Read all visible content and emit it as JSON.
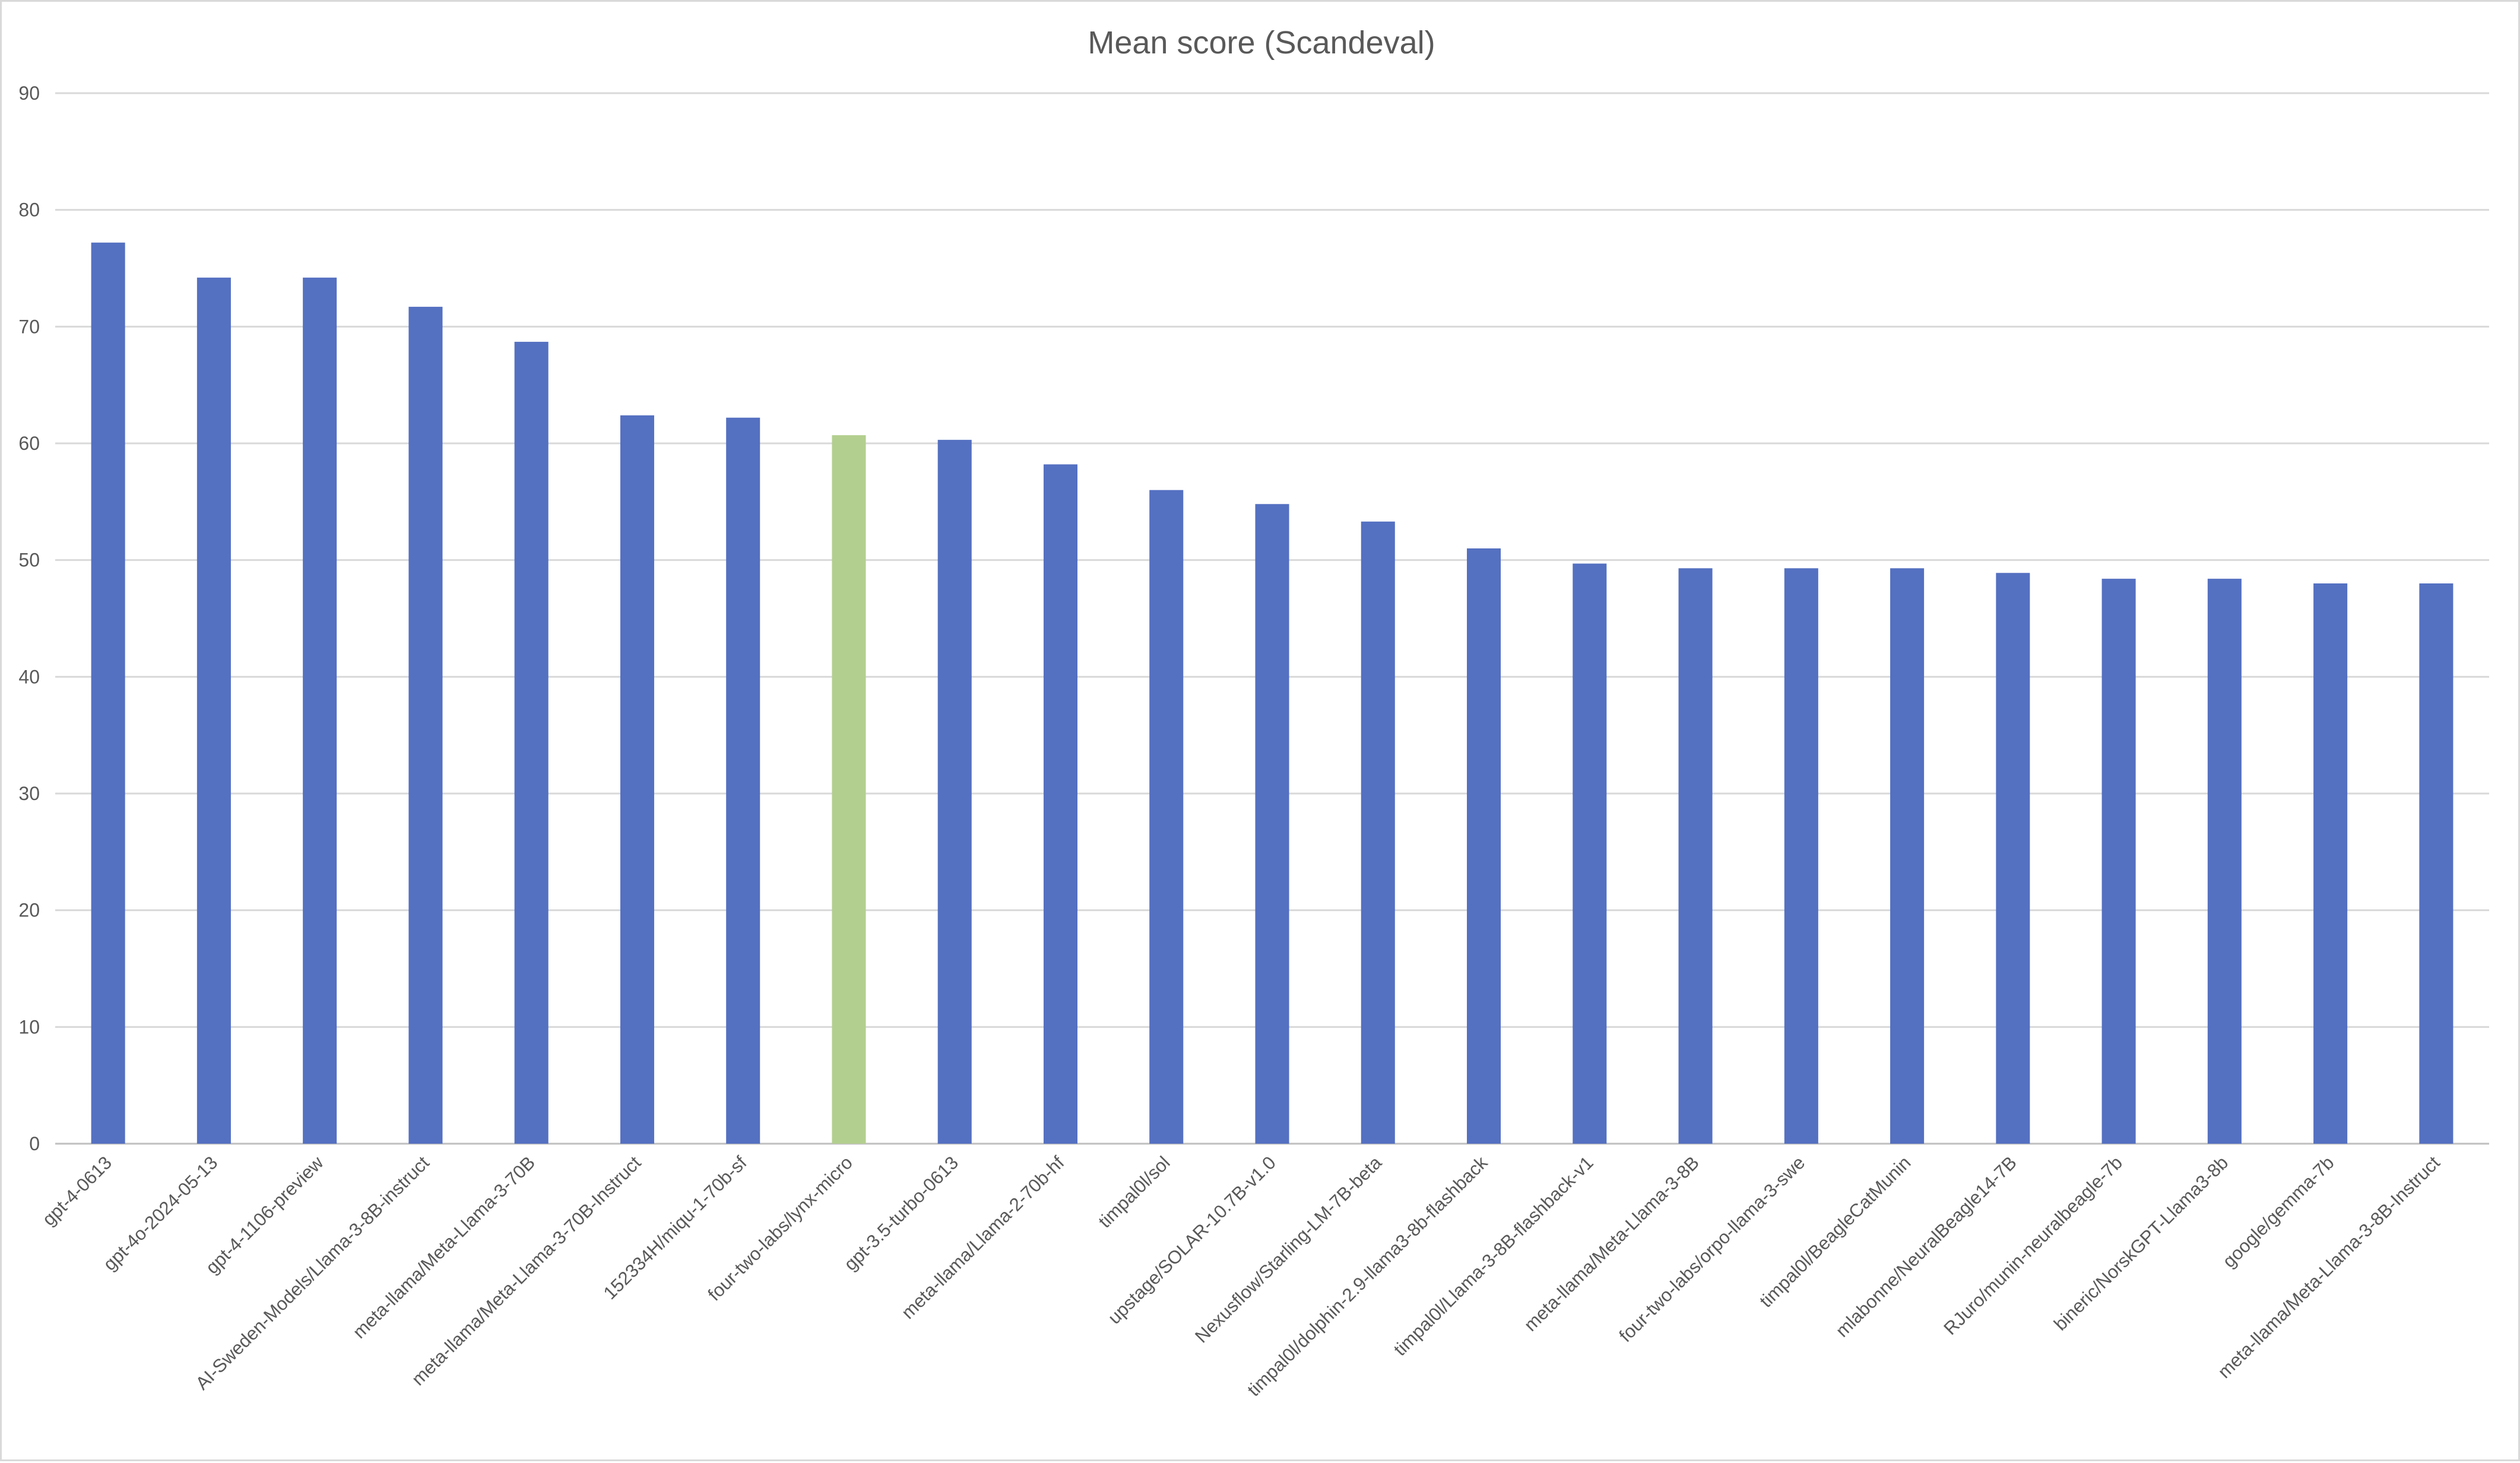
{
  "chart_data": {
    "type": "bar",
    "title": "Mean score (Scandeval)",
    "xlabel": "",
    "ylabel": "",
    "ylim": [
      0,
      90
    ],
    "yticks": [
      0,
      10,
      20,
      30,
      40,
      50,
      60,
      70,
      80,
      90
    ],
    "grid": true,
    "legend": "none",
    "colors": {
      "default": "#5470c1",
      "highlight": "#b3cf8f"
    },
    "highlight_category": "four-two-labs/lynx-micro",
    "categories": [
      "gpt-4-0613",
      "gpt-4o-2024-05-13",
      "gpt-4-1106-preview",
      "AI-Sweden-Models/Llama-3-8B-instruct",
      "meta-llama/Meta-Llama-3-70B",
      "meta-llama/Meta-Llama-3-70B-Instruct",
      "152334H/miqu-1-70b-sf",
      "four-two-labs/lynx-micro",
      "gpt-3.5-turbo-0613",
      "meta-llama/Llama-2-70b-hf",
      "timpal0l/sol",
      "upstage/SOLAR-10.7B-v1.0",
      "Nexusflow/Starling-LM-7B-beta",
      "timpal0l/dolphin-2.9-llama3-8b-flashback",
      "timpal0l/Llama-3-8B-flashback-v1",
      "meta-llama/Meta-Llama-3-8B",
      "four-two-labs/orpo-llama-3-swe",
      "timpal0l/BeagleCatMunin",
      "mlabonne/NeuralBeagle14-7B",
      "RJuro/munin-neuralbeagle-7b",
      "bineric/NorskGPT-Llama3-8b",
      "google/gemma-7b",
      "meta-llama/Meta-Llama-3-8B-Instruct"
    ],
    "values": [
      77.2,
      74.2,
      74.2,
      71.7,
      68.7,
      62.4,
      62.2,
      60.7,
      60.3,
      58.2,
      56.0,
      54.8,
      53.3,
      51.0,
      49.7,
      49.3,
      49.3,
      49.3,
      48.9,
      48.4,
      48.4,
      48.0,
      48.0
    ]
  }
}
